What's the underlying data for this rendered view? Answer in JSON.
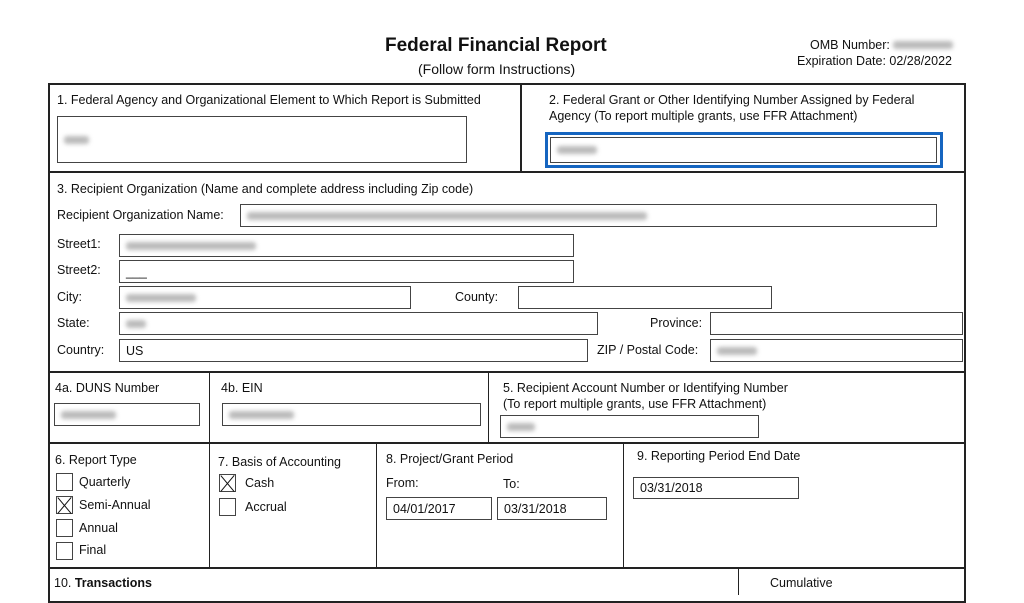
{
  "header": {
    "title": "Federal Financial Report",
    "subtitle": "(Follow form Instructions)",
    "omb_label": "OMB Number:",
    "expiration": "Expiration Date: 02/28/2022"
  },
  "box1": {
    "label": "1. Federal Agency and Organizational Element to Which Report is Submitted"
  },
  "box2": {
    "label_line1": "2. Federal Grant or Other Identifying Number Assigned by Federal",
    "label_line2": "Agency (To report multiple grants, use FFR Attachment)",
    "highlight_color": "#1565c0"
  },
  "box3": {
    "label": "3. Recipient Organization (Name and complete address including Zip code)",
    "name_label": "Recipient Organization Name:",
    "street1_label": "Street1:",
    "street2_label": "Street2:",
    "street2_value": "___",
    "city_label": "City:",
    "county_label": "County:",
    "state_label": "State:",
    "province_label": "Province:",
    "country_label": "Country:",
    "country_value": "US",
    "zip_label": "ZIP / Postal Code:"
  },
  "box4a": {
    "label": "4a. DUNS Number"
  },
  "box4b": {
    "label": "4b. EIN"
  },
  "box5": {
    "label_line1": "5. Recipient Account Number or Identifying Number",
    "label_line2": "(To report multiple grants, use FFR Attachment)"
  },
  "box6": {
    "label": "6. Report Type",
    "options": [
      {
        "label": "Quarterly",
        "checked": false
      },
      {
        "label": "Semi-Annual",
        "checked": true
      },
      {
        "label": "Annual",
        "checked": false
      },
      {
        "label": "Final",
        "checked": false
      }
    ]
  },
  "box7": {
    "label": "7. Basis of Accounting",
    "options": [
      {
        "label": "Cash",
        "checked": true
      },
      {
        "label": "Accrual",
        "checked": false
      }
    ]
  },
  "box8": {
    "label": "8. Project/Grant Period",
    "from_label": "From:",
    "to_label": "To:",
    "from": "04/01/2017",
    "to": "03/31/2018"
  },
  "box9": {
    "label": "9. Reporting Period End Date",
    "value": "03/31/2018"
  },
  "box10": {
    "prefix": "10. ",
    "label": "Transactions",
    "cumulative": "Cumulative"
  }
}
